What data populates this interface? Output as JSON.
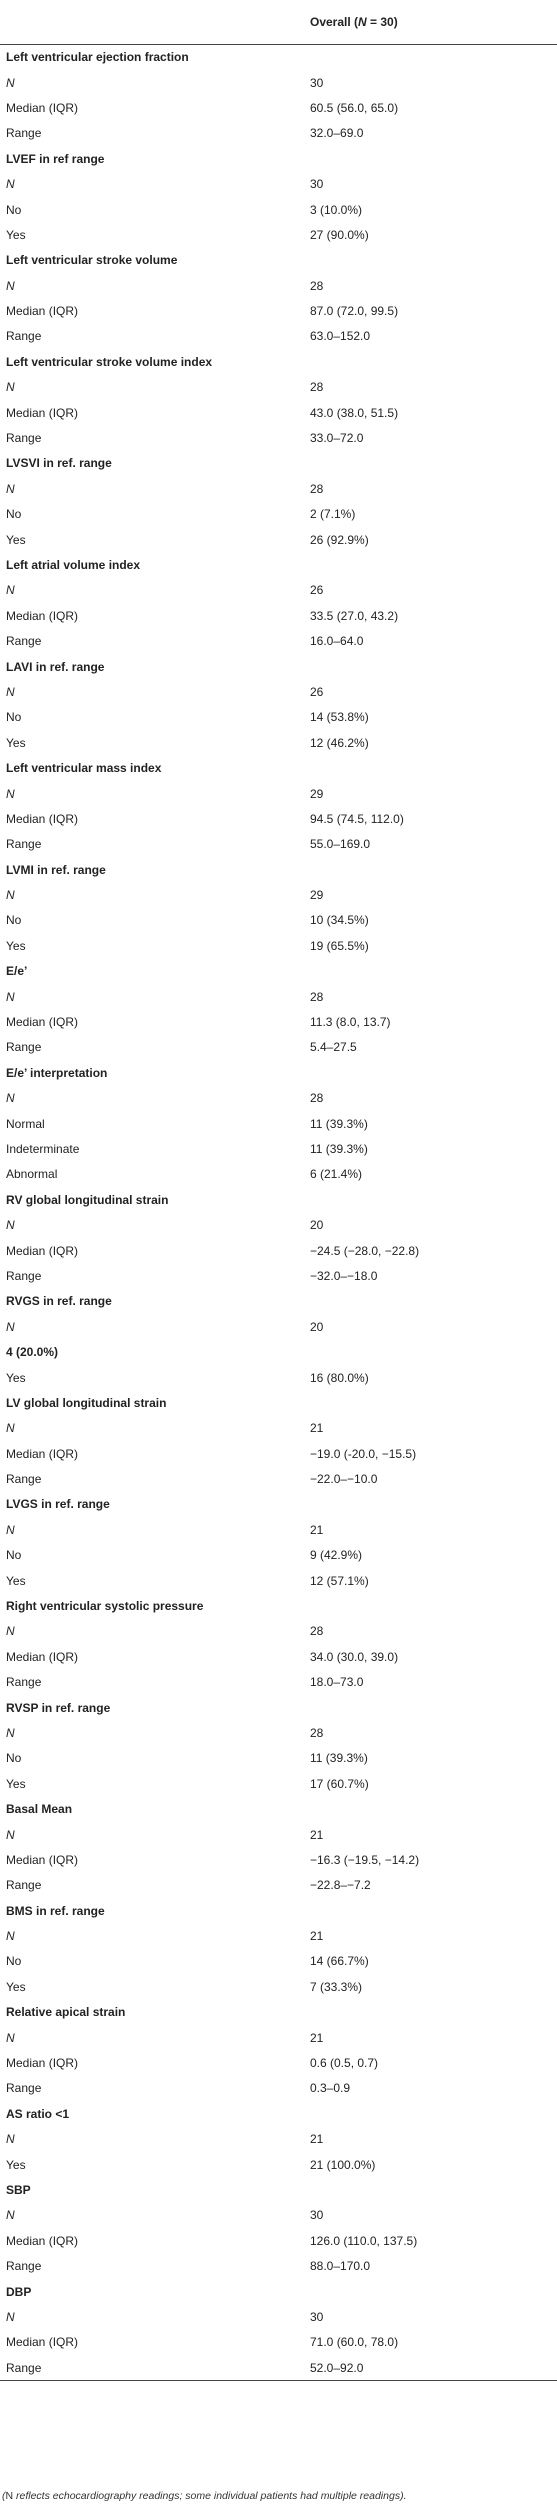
{
  "table": {
    "header": [
      "Overall (",
      "N",
      " = 30)"
    ],
    "rows": [
      [
        "Left ventricular ejection fraction"
      ],
      [
        "N",
        "30"
      ],
      [
        "Median (IQR)",
        "60.5 (56.0, 65.0)"
      ],
      [
        "Range",
        "32.0–69.0"
      ],
      [
        "LVEF in ref range"
      ],
      [
        "N",
        "30"
      ],
      [
        "No",
        "3 (10.0%)"
      ],
      [
        "Yes",
        "27 (90.0%)"
      ],
      [
        "Left ventricular stroke volume"
      ],
      [
        "N",
        "28"
      ],
      [
        "Median (IQR)",
        "87.0 (72.0, 99.5)"
      ],
      [
        "Range",
        "63.0–152.0"
      ],
      [
        "Left ventricular stroke volume index"
      ],
      [
        "N",
        "28"
      ],
      [
        "Median (IQR)",
        "43.0 (38.0, 51.5)"
      ],
      [
        "Range",
        "33.0–72.0"
      ],
      [
        "LVSVI in ref. range"
      ],
      [
        "N",
        "28"
      ],
      [
        "No",
        "2 (7.1%)"
      ],
      [
        "Yes",
        "26 (92.9%)"
      ],
      [
        "Left atrial volume index"
      ],
      [
        "N",
        "26"
      ],
      [
        "Median (IQR)",
        "33.5 (27.0, 43.2)"
      ],
      [
        "Range",
        "16.0–64.0"
      ],
      [
        "LAVI in ref. range"
      ],
      [
        "N",
        "26"
      ],
      [
        "No",
        "14 (53.8%)"
      ],
      [
        "Yes",
        "12 (46.2%)"
      ],
      [
        "Left ventricular mass index"
      ],
      [
        "N",
        "29"
      ],
      [
        "Median (IQR)",
        "94.5 (74.5, 112.0)"
      ],
      [
        "Range",
        "55.0–169.0"
      ],
      [
        "LVMI in ref. range"
      ],
      [
        "N",
        "29"
      ],
      [
        "No",
        "10 (34.5%)"
      ],
      [
        "Yes",
        "19 (65.5%)"
      ],
      [
        "E/e’"
      ],
      [
        "N",
        "28"
      ],
      [
        "Median (IQR)",
        "11.3 (8.0, 13.7)"
      ],
      [
        "Range",
        "5.4–27.5"
      ],
      [
        "E/e’ interpretation"
      ],
      [
        "N",
        "28"
      ],
      [
        "Normal",
        "11 (39.3%)"
      ],
      [
        "Indeterminate",
        "11 (39.3%)"
      ],
      [
        "Abnormal",
        "6 (21.4%)"
      ],
      [
        "RV global longitudinal strain"
      ],
      [
        "N",
        "20"
      ],
      [
        "Median (IQR)",
        "−24.5 (−28.0, −22.8)"
      ],
      [
        "Range",
        "−32.0–−18.0"
      ],
      [
        "RVGS in ref. range"
      ],
      [
        "N",
        "20"
      ],
      [
        "4 (20.0%)"
      ],
      [
        "Yes",
        "16 (80.0%)"
      ],
      [
        "LV global longitudinal strain"
      ],
      [
        "N",
        "21"
      ],
      [
        "Median (IQR)",
        "−19.0 (-20.0, −15.5)"
      ],
      [
        "Range",
        "−22.0–−10.0"
      ],
      [
        "LVGS in ref. range"
      ],
      [
        "N",
        "21"
      ],
      [
        "No",
        "9 (42.9%)"
      ],
      [
        "Yes",
        "12 (57.1%)"
      ],
      [
        "Right ventricular systolic pressure"
      ],
      [
        "N",
        "28"
      ],
      [
        "Median (IQR)",
        "34.0 (30.0, 39.0)"
      ],
      [
        "Range",
        "18.0–73.0"
      ],
      [
        "RVSP in ref. range"
      ],
      [
        "N",
        "28"
      ],
      [
        "No",
        "11 (39.3%)"
      ],
      [
        "Yes",
        "17 (60.7%)"
      ],
      [
        "Basal Mean"
      ],
      [
        "N",
        "21"
      ],
      [
        "Median (IQR)",
        "−16.3 (−19.5, −14.2)"
      ],
      [
        "Range",
        "−22.8–−7.2"
      ],
      [
        "BMS in ref. range"
      ],
      [
        "N",
        "21"
      ],
      [
        "No",
        "14 (66.7%)"
      ],
      [
        "Yes",
        "7 (33.3%)"
      ],
      [
        "Relative apical strain"
      ],
      [
        "N",
        "21"
      ],
      [
        "Median (IQR)",
        "0.6 (0.5, 0.7)"
      ],
      [
        "Range",
        "0.3–0.9"
      ],
      [
        "AS ratio <1"
      ],
      [
        "N",
        "21"
      ],
      [
        "Yes",
        "21 (100.0%)"
      ],
      [
        "SBP"
      ],
      [
        "N",
        "30"
      ],
      [
        "Median (IQR)",
        "126.0 (110.0, 137.5)"
      ],
      [
        "Range",
        "88.0–170.0"
      ],
      [
        "DBP"
      ],
      [
        "N",
        "30"
      ],
      [
        "Median (IQR)",
        "71.0 (60.0, 78.0)"
      ],
      [
        "Range",
        "52.0–92.0"
      ]
    ]
  },
  "footnote": [
    "(",
    "N",
    " reflects echocardiography readings; some individual patients had multiple readings)."
  ]
}
